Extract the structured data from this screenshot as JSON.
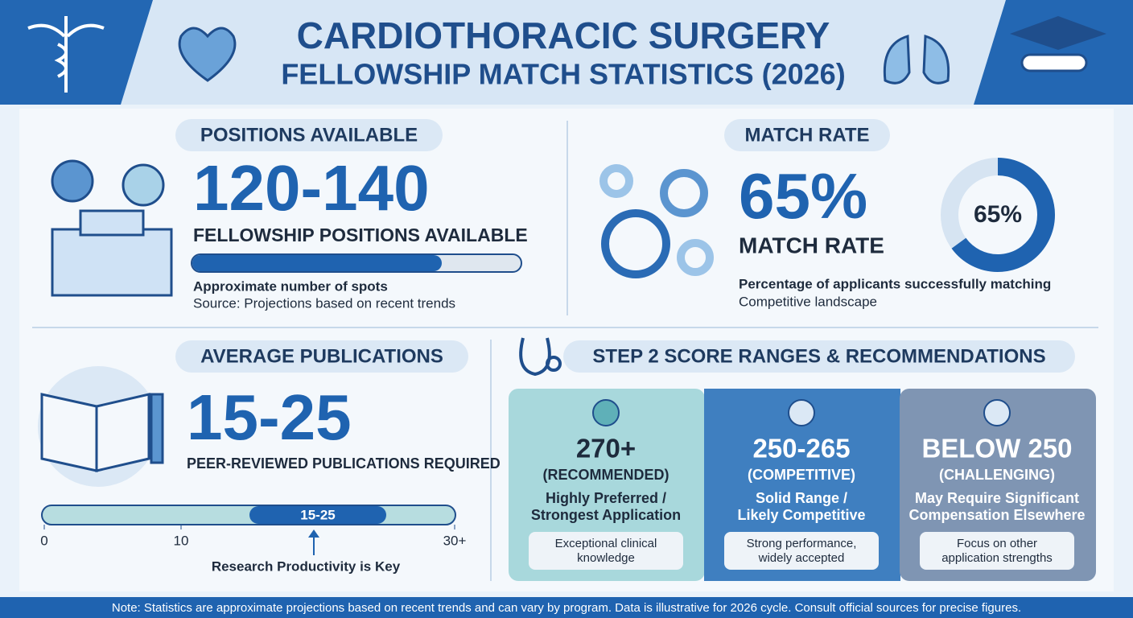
{
  "header": {
    "title_line1": "CARDIOTHORACIC SURGERY",
    "title_line2": "FELLOWSHIP MATCH STATISTICS (2026)"
  },
  "positions": {
    "heading": "POSITIONS AVAILABLE",
    "value": "120-140",
    "label": "FELLOWSHIP POSITIONS AVAILABLE",
    "note": "Approximate number of spots",
    "source": "Source: Projections based on recent trends"
  },
  "match_rate": {
    "heading": "MATCH RATE",
    "value": "65%",
    "label": "MATCH RATE",
    "note": "Percentage of applicants successfully matching",
    "source": "Competitive landscape",
    "donut": {
      "value": 65,
      "label": "65%"
    }
  },
  "publications": {
    "heading": "AVERAGE PUBLICATIONS",
    "value": "15-25",
    "label": "PEER-REVIEWED PUBLICATIONS REQUIRED",
    "scale": {
      "lim": [
        0,
        30
      ],
      "ticks": [
        0,
        10,
        {
          "value": 30,
          "label": "30+"
        }
      ],
      "range": [
        15,
        25
      ],
      "range_label": "15-25"
    },
    "caption": "Research Productivity is Key"
  },
  "step2": {
    "heading": "STEP 2 SCORE RANGES & RECOMMENDATIONS",
    "tiers": [
      {
        "score": "270+",
        "tag": "(RECOMMENDED)",
        "line1": "Highly Preferred /",
        "line2": "Strongest Application",
        "note1": "Exceptional clinical",
        "note2": "knowledge"
      },
      {
        "score": "250-265",
        "tag": "(COMPETITIVE)",
        "line1": "Solid Range /",
        "line2": "Likely Competitive",
        "note1": "Strong performance,",
        "note2": "widely accepted"
      },
      {
        "score": "BELOW 250",
        "tag": "(CHALLENGING)",
        "line1": "May Require Significant",
        "line2": "Compensation Elsewhere",
        "note1": "Focus on other",
        "note2": "application strengths"
      }
    ]
  },
  "footer": "Note: Statistics are approximate projections based on recent trends and can vary by program. Data is illustrative for 2026 cycle. Consult official sources for precise figures."
}
